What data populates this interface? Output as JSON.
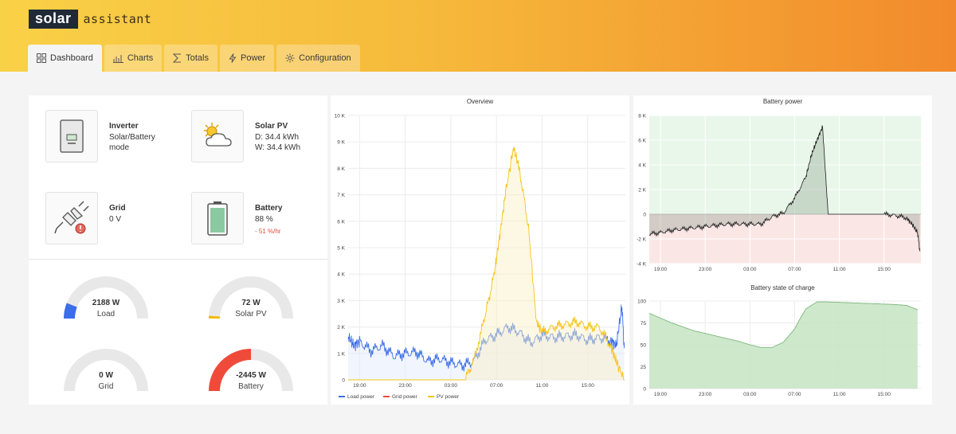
{
  "brand": {
    "box": "solar",
    "text": "assistant"
  },
  "tabs": [
    {
      "label": "Dashboard",
      "icon": "grid-icon",
      "active": true
    },
    {
      "label": "Charts",
      "icon": "bar-chart-icon"
    },
    {
      "label": "Totals",
      "icon": "sigma-icon"
    },
    {
      "label": "Power",
      "icon": "bolt-icon"
    },
    {
      "label": "Configuration",
      "icon": "gear-icon"
    }
  ],
  "tiles": {
    "inverter": {
      "title": "Inverter",
      "line1": "Solar/Battery",
      "line2": "mode",
      "icon": "inverter-icon"
    },
    "solar": {
      "title": "Solar PV",
      "line1": "D: 34.4 kWh",
      "line2": "W: 34.4 kWh",
      "icon": "sun-cloud-icon"
    },
    "grid": {
      "title": "Grid",
      "line1": "0 V",
      "icon": "plug-icon"
    },
    "battery": {
      "title": "Battery",
      "line1": "88 %",
      "warn": "- 51 %/hr",
      "icon": "battery-icon"
    }
  },
  "gauges": [
    {
      "value": "2188 W",
      "label": "Load",
      "fraction": 0.12,
      "color": "#3b6ee8"
    },
    {
      "value": "72 W",
      "label": "Solar PV",
      "fraction": 0.01,
      "color": "#f5b800"
    },
    {
      "value": "0 W",
      "label": "Grid",
      "fraction": 0.0,
      "color": "#3b6ee8"
    },
    {
      "value": "-2445 W",
      "label": "Battery",
      "fraction": 0.5,
      "color": "#f04a3a"
    }
  ],
  "chart_data": [
    {
      "type": "line",
      "title": "Overview",
      "x_ticks": [
        "19:00",
        "23:00",
        "03:00",
        "07:00",
        "11:00",
        "15:00"
      ],
      "y_ticks": [
        "0",
        "1 K",
        "2 K",
        "3 K",
        "4 K",
        "5 K",
        "6 K",
        "7 K",
        "8 K",
        "9 K",
        "10 K"
      ],
      "ylim": [
        0,
        10000
      ],
      "x_range_hours": [
        18,
        42.3
      ],
      "legend": [
        "Load power",
        "Grid power",
        "PV power"
      ],
      "legend_colors": [
        "#3b6ee8",
        "#f04a3a",
        "#f5c518"
      ],
      "series": [
        {
          "name": "Load power",
          "x": [
            18,
            18.5,
            19,
            20,
            21,
            22,
            23,
            24,
            25,
            26,
            27,
            28,
            29,
            30,
            31,
            32,
            33,
            34,
            35,
            36,
            37,
            38,
            39,
            40,
            41,
            41.5,
            42,
            42.2
          ],
          "y": [
            1650,
            1300,
            1450,
            1100,
            1300,
            900,
            1000,
            1050,
            700,
            800,
            650,
            550,
            700,
            1500,
            1700,
            2000,
            1800,
            1400,
            1700,
            1600,
            1650,
            1700,
            1500,
            1600,
            1500,
            1300,
            2800,
            1200
          ]
        },
        {
          "name": "PV power",
          "x": [
            18,
            28.2,
            29,
            30,
            30.8,
            31.3,
            31.8,
            32.5,
            33,
            33.8,
            34.5,
            35,
            36,
            37,
            38,
            39,
            40,
            41,
            41.5,
            42.2
          ],
          "y": [
            0,
            0,
            700,
            2400,
            4000,
            5500,
            7100,
            8800,
            8000,
            5800,
            2200,
            1800,
            2000,
            2100,
            2200,
            2000,
            2000,
            1300,
            700,
            0
          ]
        }
      ]
    },
    {
      "type": "area",
      "title": "Battery power",
      "x_ticks": [
        "19:00",
        "23:00",
        "03:00",
        "07:00",
        "11:00",
        "15:00"
      ],
      "y_ticks": [
        "-4 K",
        "-2 K",
        "0",
        "2 K",
        "4 K",
        "6 K",
        "8 K"
      ],
      "ylim": [
        -4000,
        8000
      ],
      "x_range_hours": [
        18,
        42.3
      ],
      "series": [
        {
          "name": "",
          "x": [
            18,
            19,
            20,
            21,
            22,
            23,
            24,
            25,
            26,
            27,
            28,
            29,
            30,
            31,
            32,
            32.5,
            33,
            33.5,
            34,
            35,
            36,
            37,
            38,
            39,
            40,
            41,
            41.5,
            42,
            42.2
          ],
          "y": [
            -1600,
            -1500,
            -1300,
            -1200,
            -1100,
            -1000,
            -900,
            -800,
            -800,
            -800,
            -800,
            -200,
            100,
            1300,
            3000,
            4800,
            6000,
            7100,
            0,
            0,
            0,
            0,
            0,
            0,
            -100,
            -300,
            -800,
            -1500,
            -3000
          ]
        }
      ]
    },
    {
      "type": "area",
      "title": "Battery state of charge",
      "x_ticks": [
        "19:00",
        "23:00",
        "03:00",
        "07:00",
        "11:00",
        "15:00"
      ],
      "y_ticks": [
        "0",
        "25",
        "50",
        "75",
        "100"
      ],
      "ylim": [
        0,
        100
      ],
      "x_range_hours": [
        18,
        42.3
      ],
      "series": [
        {
          "name": "",
          "x": [
            18,
            20,
            22,
            24,
            26,
            27,
            28,
            29,
            30,
            31,
            31.5,
            32,
            33,
            34,
            36,
            38,
            40,
            41,
            42
          ],
          "y": [
            86,
            75,
            66,
            60,
            54,
            50,
            47,
            47,
            53,
            68,
            80,
            91,
            99,
            99,
            98,
            97,
            96,
            95,
            90
          ]
        }
      ]
    }
  ]
}
